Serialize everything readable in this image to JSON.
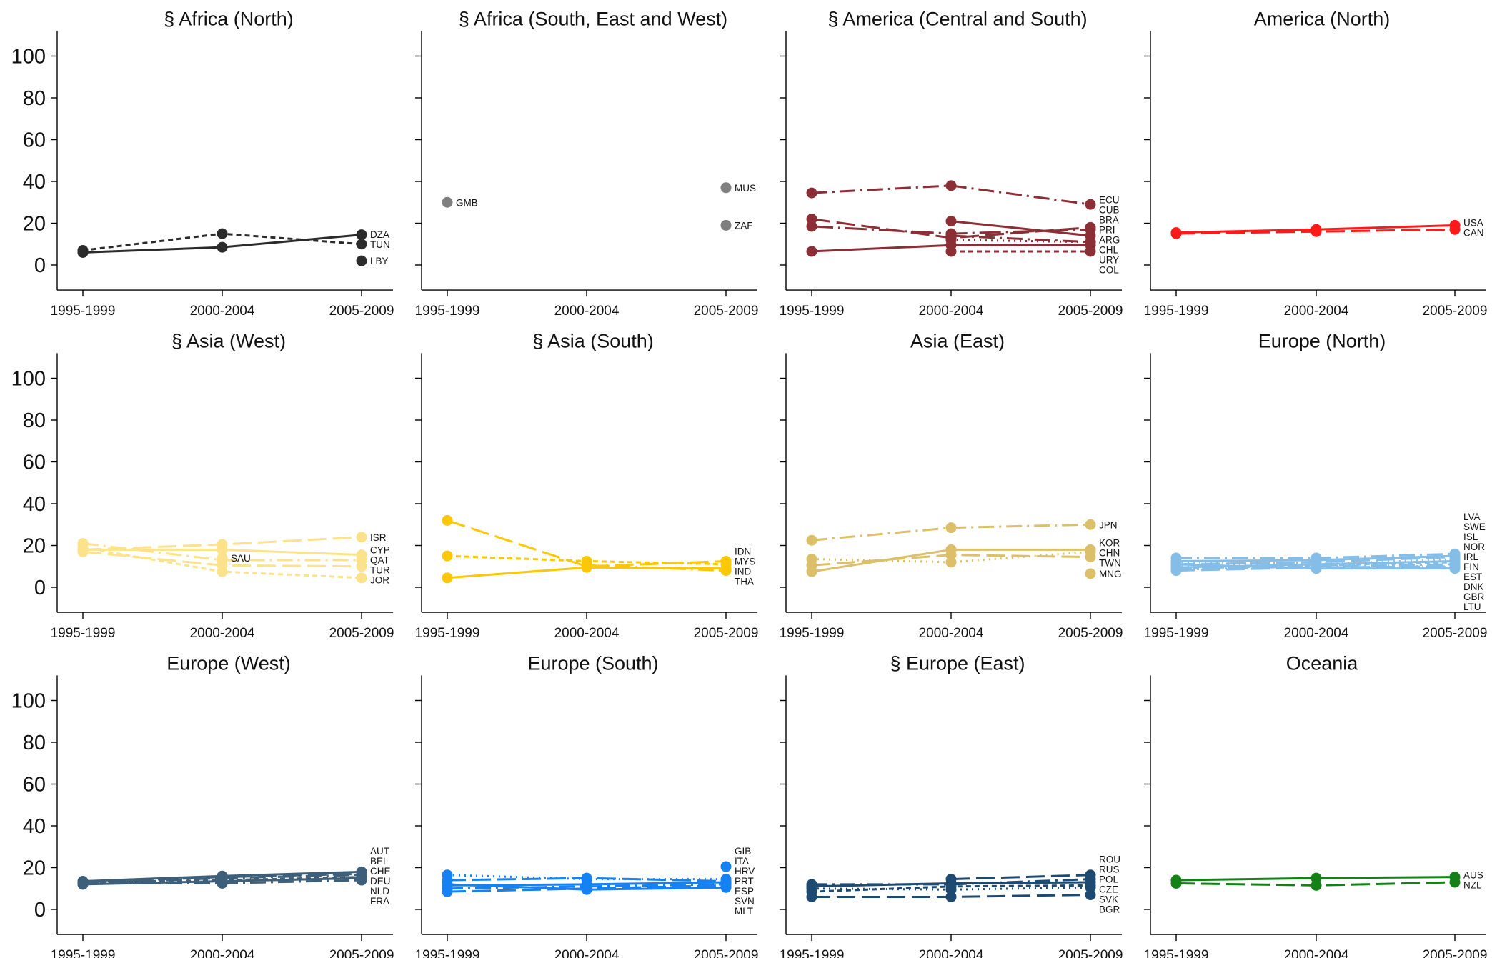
{
  "chart_data": {
    "type": "line",
    "categories": [
      "1995-1999",
      "2000-2004",
      "2005-2009"
    ],
    "ylim": [
      -12,
      112
    ],
    "yticks": [
      0,
      20,
      40,
      60,
      80,
      100
    ],
    "ytick_labels": [
      "0",
      "20",
      "40",
      "60",
      "80",
      "100"
    ],
    "grid": false,
    "panels": [
      {
        "title": "§ Africa (North)",
        "color": "#2b2b2b",
        "series": [
          {
            "name": "DZA",
            "values": [
              6,
              8.5,
              14.5
            ],
            "dash": "solid"
          },
          {
            "name": "TUN",
            "values": [
              7,
              15,
              10
            ],
            "dash": "short"
          },
          {
            "name": "LBY",
            "values": [
              null,
              null,
              2
            ],
            "dash": "solid"
          }
        ]
      },
      {
        "title": "§ Africa (South, East and West)",
        "color": "#7f7f7f",
        "series": [
          {
            "name": "GMB",
            "values": [
              30,
              null,
              null
            ],
            "dash": "solid"
          },
          {
            "name": "MUS",
            "values": [
              null,
              null,
              37
            ],
            "dash": "solid"
          },
          {
            "name": "ZAF",
            "values": [
              null,
              null,
              19
            ],
            "dash": "solid"
          }
        ]
      },
      {
        "title": "§ America (Central and South)",
        "color": "#8b2e35",
        "series": [
          {
            "name": "ECU",
            "values": [
              34.5,
              38,
              29
            ],
            "dash": "dashdot"
          },
          {
            "name": "CUB",
            "values": [
              22,
              13,
              18
            ],
            "dash": "long"
          },
          {
            "name": "BRA",
            "values": [
              18.5,
              15,
              17
            ],
            "dash": "longdot"
          },
          {
            "name": "PRI",
            "values": [
              null,
              21,
              14
            ],
            "dash": "solid"
          },
          {
            "name": "ARG",
            "values": [
              null,
              12,
              11
            ],
            "dash": "dot"
          },
          {
            "name": "URY",
            "values": [
              6.5,
              9.5,
              9.5
            ],
            "dash": "solid"
          },
          {
            "name": "COL",
            "values": [
              null,
              6.5,
              6.5
            ],
            "dash": "short"
          },
          {
            "name": "CHL",
            "values": [
              null,
              14,
              11
            ],
            "dash": "dashdot"
          }
        ]
      },
      {
        "title": "America (North)",
        "color": "#ff1a1a",
        "series": [
          {
            "name": "USA",
            "values": [
              15.5,
              17,
              19
            ],
            "dash": "solid"
          },
          {
            "name": "CAN",
            "values": [
              15,
              16,
              17
            ],
            "dash": "long"
          }
        ]
      },
      {
        "title": "§ Asia (West)",
        "color": "#fce28a",
        "series": [
          {
            "name": "ISR",
            "values": [
              18,
              20.5,
              24
            ],
            "dash": "long"
          },
          {
            "name": "CYP",
            "values": [
              18,
              18,
              15.5
            ],
            "dash": "solid"
          },
          {
            "name": "QAT",
            "values": [
              21,
              13,
              13
            ],
            "dash": "dashdot"
          },
          {
            "name": "TUR",
            "values": [
              17,
              10.5,
              10
            ],
            "dash": "long"
          },
          {
            "name": "JOR",
            "values": [
              19,
              7.5,
              4.5
            ],
            "dash": "short"
          },
          {
            "name": "SAU",
            "values": [
              null,
              14,
              null
            ],
            "dash": "solid"
          }
        ]
      },
      {
        "title": "§ Asia (South)",
        "color": "#fcc805",
        "series": [
          {
            "name": "IDN",
            "values": [
              32,
              10,
              12.5
            ],
            "dash": "long"
          },
          {
            "name": "MYS",
            "values": [
              15,
              12.5,
              11
            ],
            "dash": "short"
          },
          {
            "name": "IND",
            "values": [
              4.5,
              9.5,
              9
            ],
            "dash": "solid"
          },
          {
            "name": "THA",
            "values": [
              null,
              10.5,
              8
            ],
            "dash": "dashdot"
          }
        ]
      },
      {
        "title": "Asia (East)",
        "color": "#dbbf69",
        "series": [
          {
            "name": "JPN",
            "values": [
              22.5,
              28.5,
              30
            ],
            "dash": "dashdot"
          },
          {
            "name": "KOR",
            "values": [
              7.5,
              18,
              18
            ],
            "dash": "solid"
          },
          {
            "name": "CHN",
            "values": [
              13.5,
              12,
              17
            ],
            "dash": "dot"
          },
          {
            "name": "TWN",
            "values": [
              10.5,
              15.5,
              14.5
            ],
            "dash": "long"
          },
          {
            "name": "MNG",
            "values": [
              null,
              null,
              6.5
            ],
            "dash": "solid"
          }
        ]
      },
      {
        "title": "Europe (North)",
        "color": "#84bde8",
        "series": [
          {
            "name": "LVA",
            "values": [
              14,
              14,
              16
            ],
            "dash": "dashdot"
          },
          {
            "name": "SWE",
            "values": [
              12.5,
              13,
              15
            ],
            "dash": "solid"
          },
          {
            "name": "ISL",
            "values": [
              11,
              12,
              14.5
            ],
            "dash": "long"
          },
          {
            "name": "NOR",
            "values": [
              10,
              11,
              13.5
            ],
            "dash": "dot"
          },
          {
            "name": "IRL",
            "values": [
              9.5,
              11,
              12.5
            ],
            "dash": "solid"
          },
          {
            "name": "FIN",
            "values": [
              9,
              10.5,
              12
            ],
            "dash": "short"
          },
          {
            "name": "EST",
            "values": [
              8.5,
              10,
              11
            ],
            "dash": "dashdot"
          },
          {
            "name": "DNK",
            "values": [
              8,
              9.5,
              10
            ],
            "dash": "long"
          },
          {
            "name": "GBR",
            "values": [
              12,
              11.5,
              9.5
            ],
            "dash": "dot"
          },
          {
            "name": "LTU",
            "values": [
              11,
              9,
              9
            ],
            "dash": "solid"
          }
        ]
      },
      {
        "title": "Europe (West)",
        "color": "#3e5f79",
        "series": [
          {
            "name": "AUT",
            "values": [
              13.5,
              16,
              18
            ],
            "dash": "solid"
          },
          {
            "name": "BEL",
            "values": [
              13,
              15.5,
              17
            ],
            "dash": "long"
          },
          {
            "name": "CHE",
            "values": [
              12.5,
              15,
              16.5
            ],
            "dash": "dashdot"
          },
          {
            "name": "DEU",
            "values": [
              13,
              14,
              15.5
            ],
            "dash": "short"
          },
          {
            "name": "NLD",
            "values": [
              12,
              13.5,
              15
            ],
            "dash": "solid"
          },
          {
            "name": "FRA",
            "values": [
              12.5,
              12.5,
              14
            ],
            "dash": "dashdot"
          }
        ]
      },
      {
        "title": "Europe (South)",
        "color": "#1681f2",
        "series": [
          {
            "name": "GIB",
            "values": [
              null,
              null,
              20.5
            ],
            "dash": "solid"
          },
          {
            "name": "ITA",
            "values": [
              16.5,
              14.5,
              14.5
            ],
            "dash": "dot"
          },
          {
            "name": "HRV",
            "values": [
              14,
              15,
              13.5
            ],
            "dash": "long"
          },
          {
            "name": "PRT",
            "values": [
              11.5,
              12,
              13
            ],
            "dash": "solid"
          },
          {
            "name": "ESP",
            "values": [
              10,
              11,
              12
            ],
            "dash": "dashdot"
          },
          {
            "name": "SVN",
            "values": [
              8.5,
              10,
              11.5
            ],
            "dash": "long"
          },
          {
            "name": "MLT",
            "values": [
              12,
              9.5,
              10.5
            ],
            "dash": "solid"
          }
        ]
      },
      {
        "title": "§ Europe (East)",
        "color": "#1e4a72",
        "series": [
          {
            "name": "ROU",
            "values": [
              null,
              14.5,
              16.5
            ],
            "dash": "long"
          },
          {
            "name": "RUS",
            "values": [
              12,
              12,
              14.5
            ],
            "dash": "dashdot"
          },
          {
            "name": "POL",
            "values": [
              11,
              12.5,
              13
            ],
            "dash": "solid"
          },
          {
            "name": "CZE",
            "values": [
              8.5,
              11,
              11.5
            ],
            "dash": "short"
          },
          {
            "name": "SVK",
            "values": [
              10,
              9.5,
              10.5
            ],
            "dash": "dot"
          },
          {
            "name": "BGR",
            "values": [
              6,
              6,
              7
            ],
            "dash": "long"
          }
        ]
      },
      {
        "title": "Oceania",
        "color": "#158016",
        "series": [
          {
            "name": "AUS",
            "values": [
              14,
              15,
              15.5
            ],
            "dash": "solid"
          },
          {
            "name": "NZL",
            "values": [
              12.5,
              11.5,
              13
            ],
            "dash": "long"
          }
        ]
      }
    ]
  }
}
